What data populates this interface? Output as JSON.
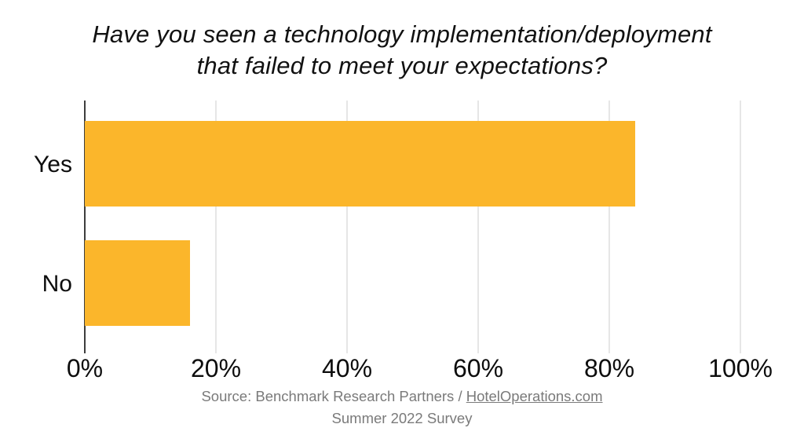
{
  "header": {
    "title_line1": "Have you seen a technology implementation/deployment",
    "title_line2": "that failed to meet your expectations?"
  },
  "chart_data": {
    "type": "bar",
    "orientation": "horizontal",
    "title": "Have you seen a technology implementation/deployment that failed to meet your expectations?",
    "categories": [
      "Yes",
      "No"
    ],
    "values": [
      84,
      16
    ],
    "unit": "percent",
    "xlim": [
      0,
      100
    ],
    "x_tick_labels": [
      "0%",
      "20%",
      "40%",
      "60%",
      "80%",
      "100%"
    ],
    "grid": "vertical-gridlines-on",
    "legend": "none",
    "bar_color": "#FBB62B",
    "axis_line_color": "#3d3d3d",
    "gridline_color": "#e6e6e6"
  },
  "footer": {
    "source_prefix": "Source: Benchmark Research Partners / ",
    "source_link": "HotelOperations.com",
    "survey": "Summer 2022 Survey"
  }
}
